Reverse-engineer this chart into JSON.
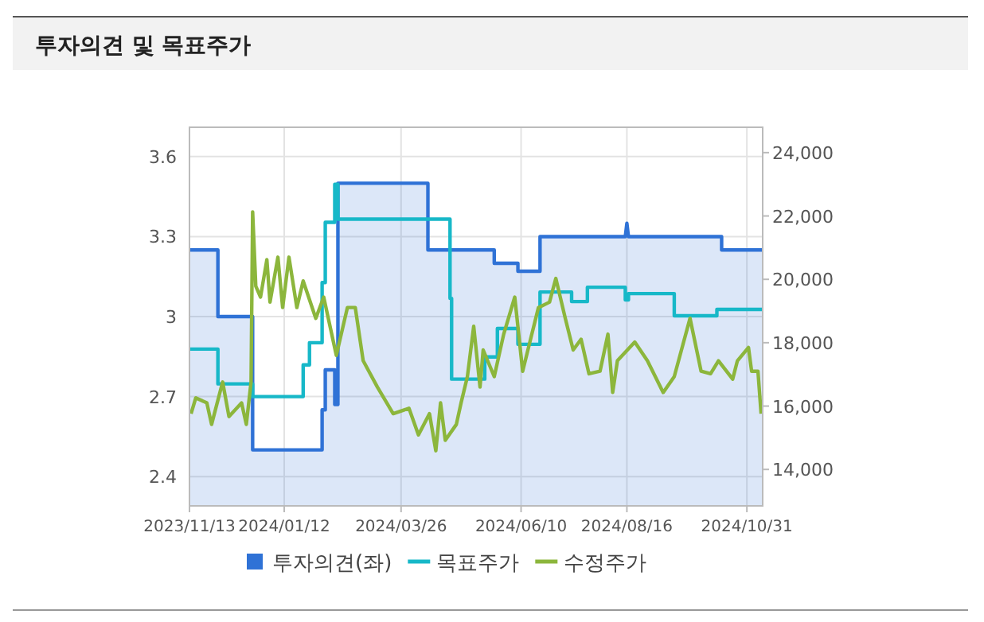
{
  "chart_data": {
    "type": "line",
    "title": "투자의견 및 목표주가",
    "xlim": [
      "2023-11-13",
      "2024-11-10"
    ],
    "xticks": [
      {
        "value": "2023-11-13",
        "label": "2023/11/13"
      },
      {
        "value": "2024-01-12",
        "label": "2024/01/12"
      },
      {
        "value": "2024-03-26",
        "label": "2024/03/26"
      },
      {
        "value": "2024-06-10",
        "label": "2024/06/10"
      },
      {
        "value": "2024-08-16",
        "label": "2024/08/16"
      },
      {
        "value": "2024-10-31",
        "label": "2024/10/31"
      }
    ],
    "ylim": [
      2.29,
      3.71
    ],
    "yticks": [
      2.4,
      2.7,
      3,
      3.3,
      3.6
    ],
    "y2lim": [
      12850,
      24800
    ],
    "y2ticks": [
      {
        "value": 14000,
        "label": "14,000"
      },
      {
        "value": 16000,
        "label": "16,000"
      },
      {
        "value": 18000,
        "label": "18,000"
      },
      {
        "value": 20000,
        "label": "20,000"
      },
      {
        "value": 22000,
        "label": "22,000"
      },
      {
        "value": 24000,
        "label": "24,000"
      }
    ],
    "grid": true,
    "legend": "bottom",
    "series": [
      {
        "name": "투자의견(좌)",
        "type": "area",
        "axis": "y",
        "color": "#2f72d6",
        "x": [
          "2023-11-13",
          "2023-12-01",
          "2023-12-01",
          "2023-12-23",
          "2023-12-23",
          "2024-02-05",
          "2024-02-05",
          "2024-02-07",
          "2024-02-07",
          "2024-02-13",
          "2024-02-13",
          "2024-02-15",
          "2024-02-15",
          "2024-04-12",
          "2024-04-12",
          "2024-05-24",
          "2024-05-24",
          "2024-06-08",
          "2024-06-08",
          "2024-06-22",
          "2024-06-22",
          "2024-08-15",
          "2024-08-16",
          "2024-08-17",
          "2024-10-15",
          "2024-10-15",
          "2024-11-10"
        ],
        "values": [
          3.25,
          3.25,
          3.0,
          3.0,
          2.5,
          2.5,
          2.65,
          2.65,
          2.8,
          2.8,
          2.67,
          2.67,
          3.5,
          3.5,
          3.25,
          3.25,
          3.2,
          3.2,
          3.17,
          3.17,
          3.3,
          3.3,
          3.35,
          3.3,
          3.3,
          3.25,
          3.25
        ]
      },
      {
        "name": "목표주가",
        "type": "step",
        "axis": "y2",
        "color": "#17b8c8",
        "x": [
          "2023-11-13",
          "2023-12-01",
          "2023-12-23",
          "2024-01-24",
          "2024-01-28",
          "2024-02-05",
          "2024-02-07",
          "2024-02-13",
          "2024-02-15",
          "2024-04-26",
          "2024-04-27",
          "2024-05-18",
          "2024-05-26",
          "2024-06-08",
          "2024-06-22",
          "2024-07-12",
          "2024-07-22",
          "2024-08-15",
          "2024-08-17",
          "2024-09-15",
          "2024-10-12",
          "2024-11-10"
        ],
        "values": [
          17800,
          16700,
          16300,
          17300,
          18000,
          19900,
          21800,
          23000,
          21900,
          19400,
          16850,
          17550,
          18450,
          17950,
          19600,
          19300,
          19750,
          19350,
          19550,
          18850,
          19050,
          19050
        ]
      },
      {
        "name": "수정주가",
        "axis": "y2",
        "color": "#8cb63c",
        "x": [
          "2023-11-14",
          "2023-11-17",
          "2023-11-24",
          "2023-11-27",
          "2023-12-04",
          "2023-12-08",
          "2023-12-16",
          "2023-12-19",
          "2023-12-22",
          "2023-12-23",
          "2023-12-25",
          "2023-12-28",
          "2024-01-01",
          "2024-01-03",
          "2024-01-08",
          "2024-01-11",
          "2024-01-15",
          "2024-01-20",
          "2024-01-24",
          "2024-02-01",
          "2024-02-06",
          "2024-02-14",
          "2024-02-21",
          "2024-02-26",
          "2024-03-02",
          "2024-03-11",
          "2024-03-21",
          "2024-03-31",
          "2024-04-06",
          "2024-04-13",
          "2024-04-17",
          "2024-04-20",
          "2024-04-23",
          "2024-04-30",
          "2024-05-03",
          "2024-05-07",
          "2024-05-11",
          "2024-05-15",
          "2024-05-17",
          "2024-05-24",
          "2024-05-30",
          "2024-06-06",
          "2024-06-11",
          "2024-06-16",
          "2024-06-21",
          "2024-06-28",
          "2024-07-02",
          "2024-07-08",
          "2024-07-13",
          "2024-07-18",
          "2024-07-23",
          "2024-07-30",
          "2024-08-04",
          "2024-08-07",
          "2024-08-10",
          "2024-08-21",
          "2024-08-29",
          "2024-09-08",
          "2024-09-15",
          "2024-09-25",
          "2024-10-02",
          "2024-10-08",
          "2024-10-13",
          "2024-10-22",
          "2024-10-25",
          "2024-11-01",
          "2024-11-03",
          "2024-11-07",
          "2024-11-09"
        ],
        "values": [
          15760,
          16260,
          16100,
          15420,
          16760,
          15670,
          16100,
          15420,
          16760,
          22130,
          19780,
          19440,
          20620,
          19280,
          20700,
          19110,
          20700,
          19110,
          19950,
          18770,
          19440,
          17600,
          19110,
          19110,
          17430,
          16600,
          15760,
          15930,
          15090,
          15760,
          14590,
          16100,
          14920,
          15420,
          16100,
          16930,
          18520,
          16600,
          17770,
          16930,
          18270,
          19440,
          17100,
          18110,
          19110,
          19280,
          20030,
          18770,
          17770,
          18110,
          17020,
          17100,
          18270,
          16430,
          17430,
          18020,
          17430,
          16430,
          16930,
          18770,
          17100,
          17020,
          17430,
          16850,
          17430,
          17850,
          17100,
          17100,
          15760
        ]
      }
    ]
  }
}
